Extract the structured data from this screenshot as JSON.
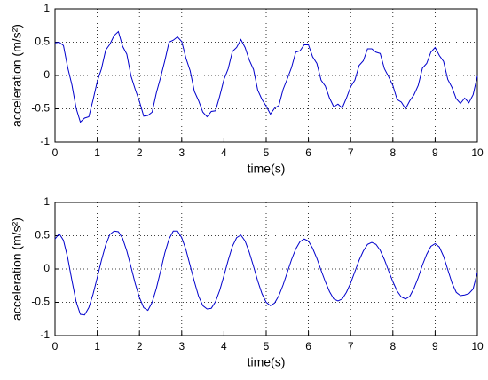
{
  "chart_data": [
    {
      "type": "line",
      "xlabel": "time(s)",
      "ylabel": "acceleration (m/s²)",
      "color": "#0000cc",
      "x": [
        0,
        0.1,
        0.2,
        0.3,
        0.4,
        0.5,
        0.6,
        0.7,
        0.8,
        0.9,
        1,
        1.1,
        1.2,
        1.3,
        1.4,
        1.5,
        1.6,
        1.7,
        1.8,
        1.9,
        2,
        2.1,
        2.2,
        2.3,
        2.4,
        2.5,
        2.6,
        2.7,
        2.8,
        2.9,
        3,
        3.1,
        3.2,
        3.3,
        3.4,
        3.5,
        3.6,
        3.7,
        3.8,
        3.9,
        4,
        4.1,
        4.2,
        4.3,
        4.4,
        4.5,
        4.6,
        4.7,
        4.8,
        4.9,
        5,
        5.1,
        5.2,
        5.3,
        5.4,
        5.5,
        5.6,
        5.7,
        5.8,
        5.9,
        6,
        6.1,
        6.2,
        6.3,
        6.4,
        6.5,
        6.6,
        6.7,
        6.8,
        6.9,
        7,
        7.1,
        7.2,
        7.3,
        7.4,
        7.5,
        7.6,
        7.7,
        7.8,
        7.9,
        8,
        8.1,
        8.2,
        8.3,
        8.4,
        8.5,
        8.6,
        8.7,
        8.8,
        8.9,
        9,
        9.1,
        9.2,
        9.3,
        9.4,
        9.5,
        9.6,
        9.7,
        9.8,
        9.9,
        10
      ],
      "values": [
        0.49,
        0.5,
        0.45,
        0.12,
        -0.14,
        -0.49,
        -0.7,
        -0.64,
        -0.62,
        -0.37,
        -0.09,
        0.1,
        0.38,
        0.47,
        0.6,
        0.66,
        0.44,
        0.32,
        -0.01,
        -0.21,
        -0.39,
        -0.61,
        -0.6,
        -0.55,
        -0.26,
        -0.03,
        0.22,
        0.5,
        0.53,
        0.58,
        0.51,
        0.26,
        0.07,
        -0.24,
        -0.38,
        -0.55,
        -0.62,
        -0.54,
        -0.53,
        -0.31,
        -0.06,
        0.1,
        0.36,
        0.42,
        0.54,
        0.42,
        0.23,
        0.09,
        -0.22,
        -0.36,
        -0.46,
        -0.58,
        -0.49,
        -0.45,
        -0.21,
        -0.05,
        0.12,
        0.35,
        0.37,
        0.46,
        0.46,
        0.28,
        0.18,
        -0.07,
        -0.16,
        -0.34,
        -0.47,
        -0.43,
        -0.49,
        -0.34,
        -0.17,
        -0.07,
        0.15,
        0.22,
        0.4,
        0.4,
        0.35,
        0.33,
        0.1,
        -0.02,
        -0.15,
        -0.36,
        -0.4,
        -0.5,
        -0.38,
        -0.29,
        -0.15,
        0.11,
        0.18,
        0.35,
        0.42,
        0.3,
        0.21,
        -0.06,
        -0.18,
        -0.35,
        -0.42,
        -0.34,
        -0.41,
        -0.29,
        -0.01
      ],
      "xlim": [
        0,
        10
      ],
      "ylim": [
        -1,
        1
      ],
      "xticks": [
        0,
        1,
        2,
        3,
        4,
        5,
        6,
        7,
        8,
        9,
        10
      ],
      "yticks": [
        -1,
        -0.5,
        0,
        0.5,
        1
      ],
      "grid": true
    },
    {
      "type": "line",
      "xlabel": "time(s)",
      "ylabel": "acceleration (m/s²)",
      "color": "#0000cc",
      "x": [
        0,
        0.1,
        0.2,
        0.3,
        0.4,
        0.5,
        0.6,
        0.7,
        0.8,
        0.9,
        1,
        1.1,
        1.2,
        1.3,
        1.4,
        1.5,
        1.6,
        1.7,
        1.8,
        1.9,
        2,
        2.1,
        2.2,
        2.3,
        2.4,
        2.5,
        2.6,
        2.7,
        2.8,
        2.9,
        3,
        3.1,
        3.2,
        3.3,
        3.4,
        3.5,
        3.6,
        3.7,
        3.8,
        3.9,
        4,
        4.1,
        4.2,
        4.3,
        4.4,
        4.5,
        4.6,
        4.7,
        4.8,
        4.9,
        5,
        5.1,
        5.2,
        5.3,
        5.4,
        5.5,
        5.6,
        5.7,
        5.8,
        5.9,
        6,
        6.1,
        6.2,
        6.3,
        6.4,
        6.5,
        6.6,
        6.7,
        6.8,
        6.9,
        7,
        7.1,
        7.2,
        7.3,
        7.4,
        7.5,
        7.6,
        7.7,
        7.8,
        7.9,
        8,
        8.1,
        8.2,
        8.3,
        8.4,
        8.5,
        8.6,
        8.7,
        8.8,
        8.9,
        9,
        9.1,
        9.2,
        9.3,
        9.4,
        9.5,
        9.6,
        9.7,
        9.8,
        9.9,
        10
      ],
      "values": [
        0.45,
        0.53,
        0.43,
        0.17,
        -0.17,
        -0.49,
        -0.68,
        -0.69,
        -0.58,
        -0.38,
        -0.13,
        0.13,
        0.36,
        0.52,
        0.57,
        0.56,
        0.46,
        0.27,
        0.03,
        -0.22,
        -0.43,
        -0.58,
        -0.62,
        -0.5,
        -0.29,
        -0.03,
        0.24,
        0.45,
        0.57,
        0.57,
        0.47,
        0.29,
        0.05,
        -0.19,
        -0.41,
        -0.55,
        -0.6,
        -0.59,
        -0.49,
        -0.32,
        -0.1,
        0.13,
        0.34,
        0.47,
        0.51,
        0.42,
        0.25,
        0.04,
        -0.18,
        -0.37,
        -0.5,
        -0.55,
        -0.51,
        -0.4,
        -0.24,
        -0.05,
        0.14,
        0.3,
        0.41,
        0.45,
        0.42,
        0.31,
        0.16,
        -0.02,
        -0.19,
        -0.34,
        -0.45,
        -0.48,
        -0.45,
        -0.35,
        -0.21,
        -0.04,
        0.13,
        0.27,
        0.37,
        0.4,
        0.37,
        0.28,
        0.14,
        -0.03,
        -0.19,
        -0.33,
        -0.42,
        -0.45,
        -0.41,
        -0.29,
        -0.13,
        0.06,
        0.22,
        0.34,
        0.38,
        0.33,
        0.19,
        -0.01,
        -0.21,
        -0.35,
        -0.4,
        -0.39,
        -0.37,
        -0.3,
        -0.05
      ],
      "xlim": [
        0,
        10
      ],
      "ylim": [
        -1,
        1
      ],
      "xticks": [
        0,
        1,
        2,
        3,
        4,
        5,
        6,
        7,
        8,
        9,
        10
      ],
      "yticks": [
        -1,
        -0.5,
        0,
        0.5,
        1
      ],
      "grid": true
    }
  ]
}
